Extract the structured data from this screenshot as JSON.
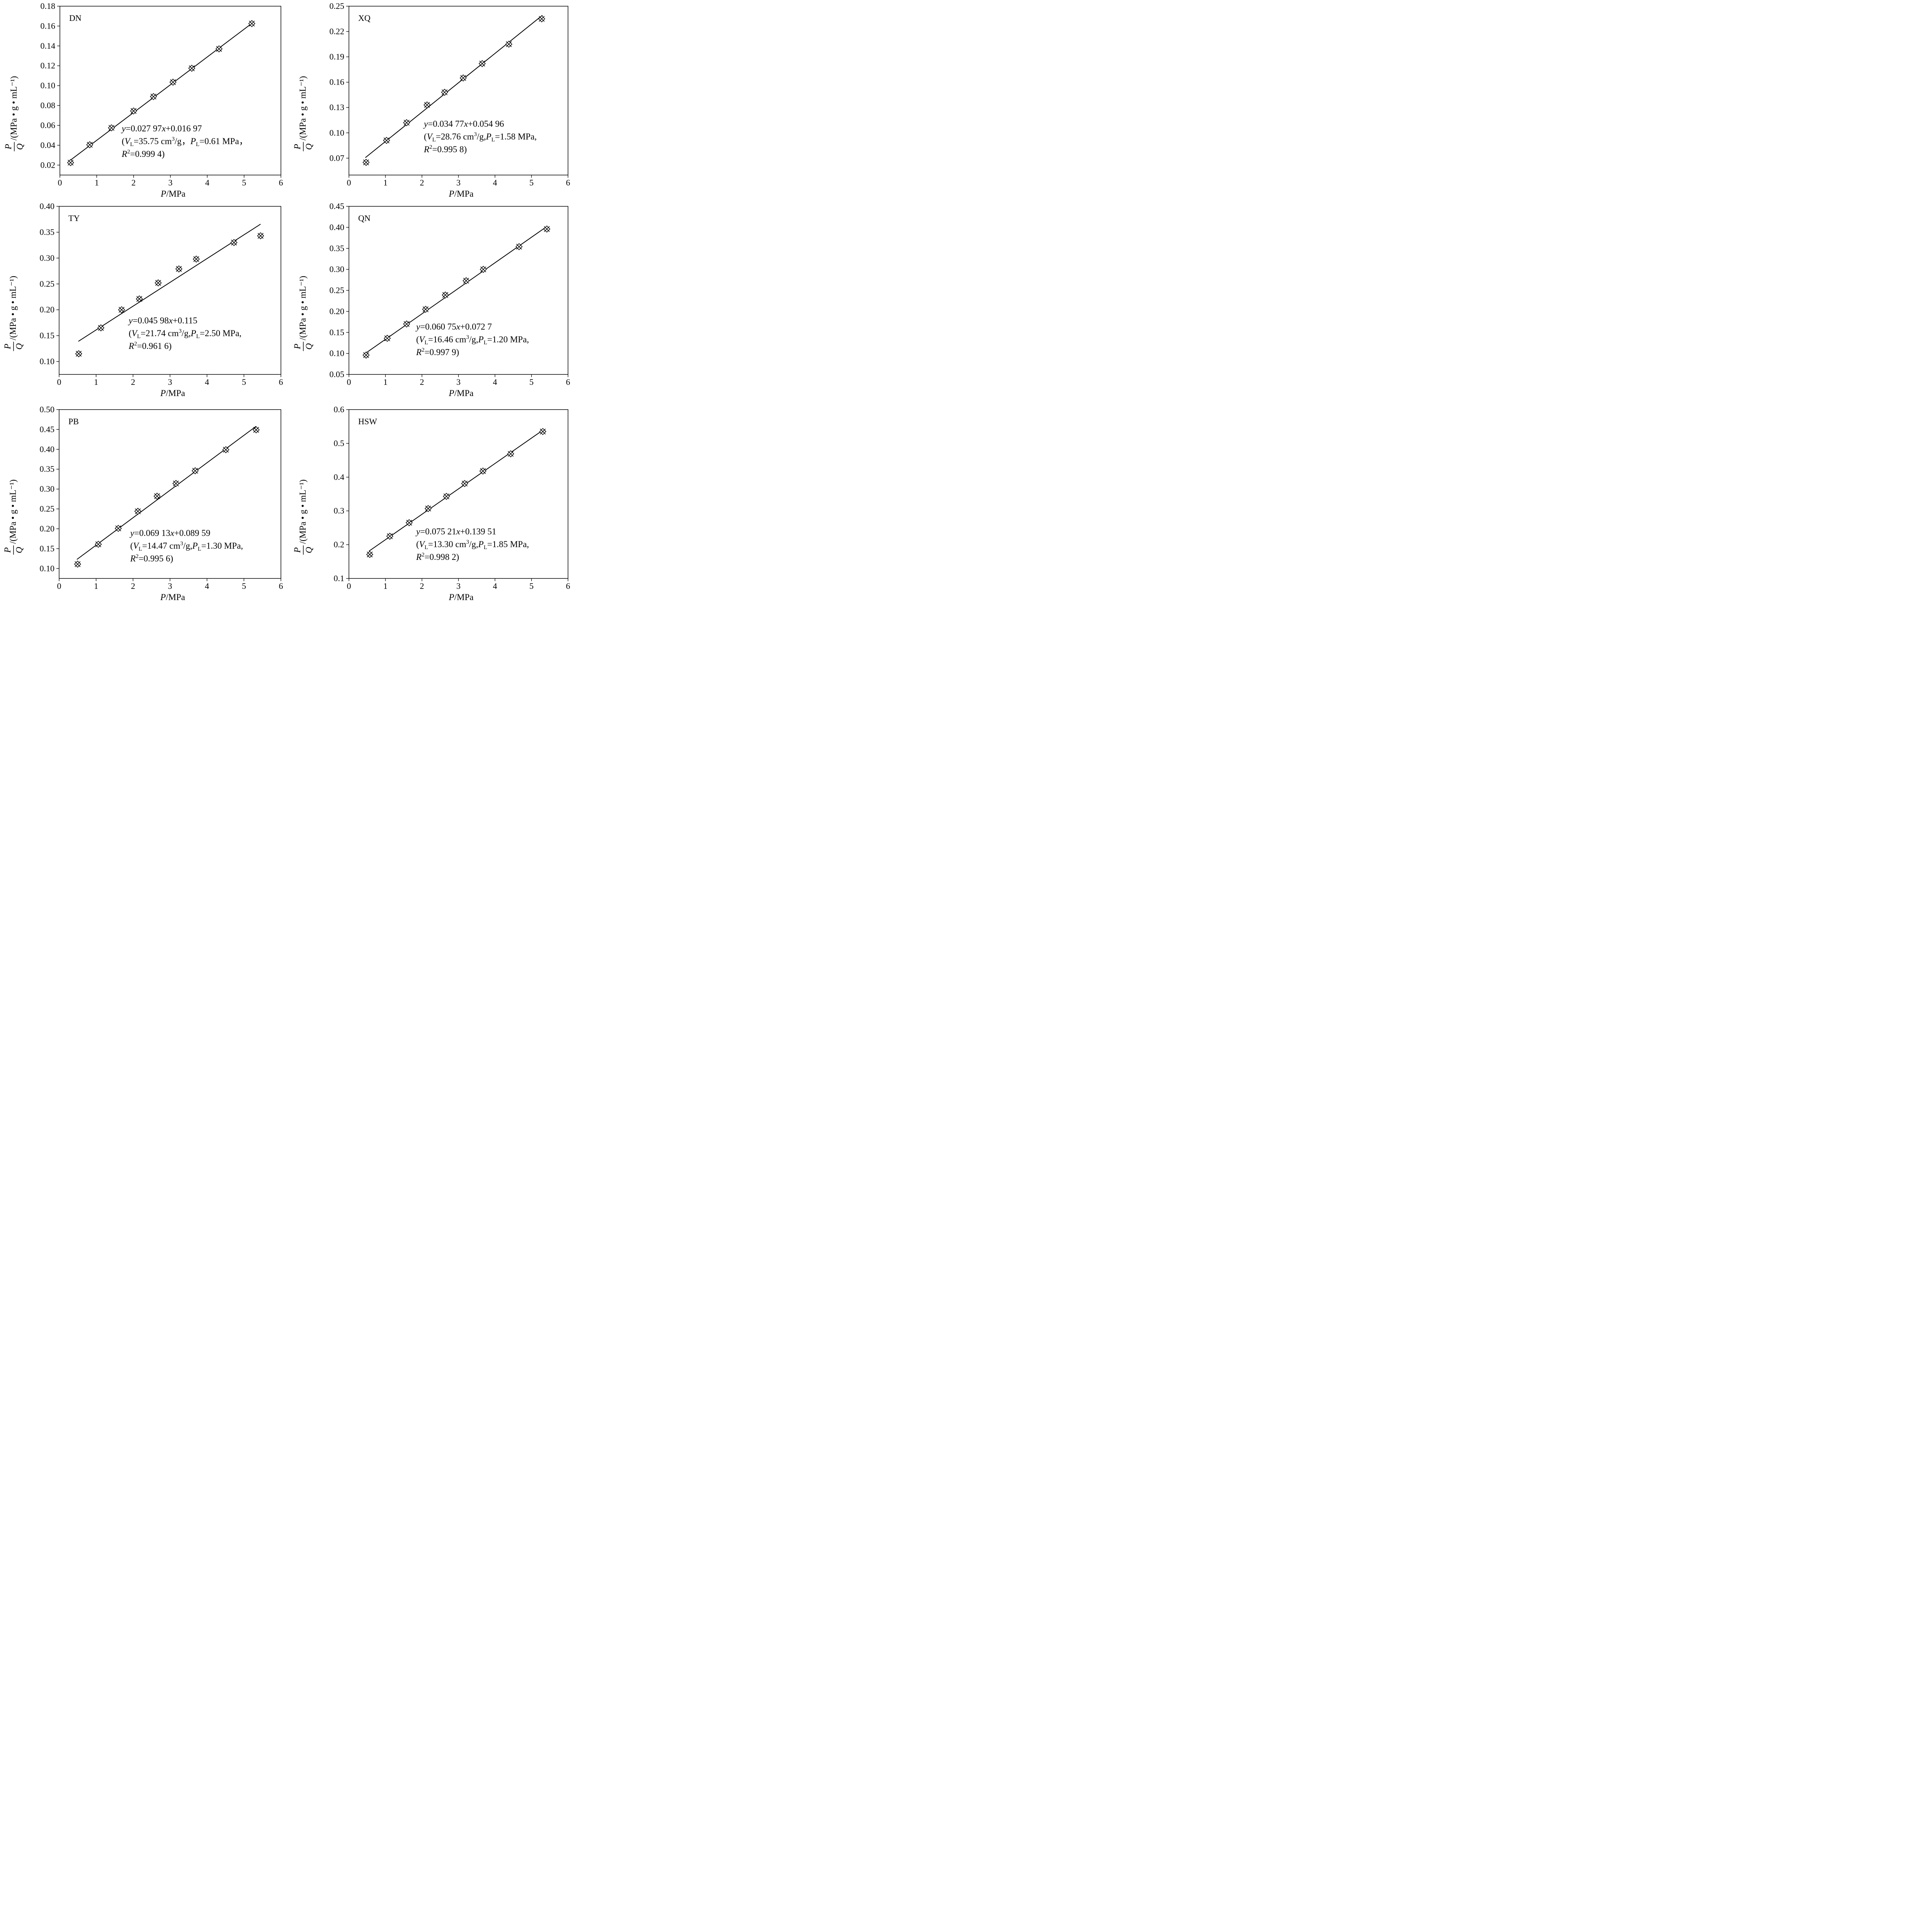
{
  "chart_data": [
    {
      "type": "scatter",
      "panel_label": "DN",
      "xlabel": {
        "var": "P",
        "unit": "/MPa"
      },
      "ylabel": {
        "num": "P",
        "den": "Q",
        "unit": "/(MPa • g • mL⁻¹)"
      },
      "xlim": [
        0,
        6
      ],
      "ylim": [
        0.01,
        0.18
      ],
      "xticks": [
        "0",
        "1",
        "2",
        "3",
        "4",
        "5",
        "6"
      ],
      "yticks": [
        "0.02",
        "0.04",
        "0.06",
        "0.08",
        "0.10",
        "0.12",
        "0.14",
        "0.16",
        "0.18"
      ],
      "points": {
        "x": [
          0.29,
          0.81,
          1.4,
          2.0,
          2.54,
          3.07,
          3.58,
          4.32,
          5.21
        ],
        "y": [
          0.0225,
          0.0405,
          0.0575,
          0.0745,
          0.089,
          0.1035,
          0.1175,
          0.137,
          0.1625
        ]
      },
      "fit": {
        "slope": 0.02797,
        "intercept": 0.01697,
        "x_range": [
          0.25,
          5.25
        ]
      },
      "equation": {
        "line1": "y=0.027 97x+0.016 97",
        "line2": "(VL=35.75 cm3/g，PL=0.61 MPa，",
        "line3": "R2=0.999 4)"
      },
      "grid": false,
      "legend": "none"
    },
    {
      "type": "scatter",
      "panel_label": "XQ",
      "xlabel": {
        "var": "P",
        "unit": "/MPa"
      },
      "ylabel": {
        "num": "P",
        "den": "Q",
        "unit": "/(MPa • g • mL⁻¹)"
      },
      "xlim": [
        0,
        6
      ],
      "ylim": [
        0.05,
        0.25
      ],
      "xticks": [
        "0",
        "1",
        "2",
        "3",
        "4",
        "5",
        "6"
      ],
      "yticks": [
        "0.07",
        "0.10",
        "0.13",
        "0.16",
        "0.19",
        "0.22",
        "0.25"
      ],
      "points": {
        "x": [
          0.47,
          1.03,
          1.58,
          2.14,
          2.62,
          3.13,
          3.65,
          4.38,
          5.28
        ],
        "y": [
          0.065,
          0.091,
          0.112,
          0.133,
          0.148,
          0.165,
          0.182,
          0.205,
          0.235
        ]
      },
      "fit": {
        "slope": 0.03477,
        "intercept": 0.05496,
        "x_range": [
          0.45,
          5.3
        ]
      },
      "equation": {
        "line1": "y=0.034 77x+0.054 96",
        "line2": "(VL=28.76 cm3/g,PL=1.58 MPa,",
        "line3": "R2=0.995 8)"
      },
      "grid": false,
      "legend": "none"
    },
    {
      "type": "scatter",
      "panel_label": "TY",
      "xlabel": {
        "var": "P",
        "unit": "/MPa"
      },
      "ylabel": {
        "num": "P",
        "den": "Q",
        "unit": "/(MPa • g • mL⁻¹)"
      },
      "xlim": [
        0,
        6
      ],
      "ylim": [
        0.075,
        0.4
      ],
      "xticks": [
        "0",
        "1",
        "2",
        "3",
        "4",
        "5",
        "6"
      ],
      "yticks": [
        "0.10",
        "0.15",
        "0.20",
        "0.25",
        "0.30",
        "0.35",
        "0.40"
      ],
      "points": {
        "x": [
          0.53,
          1.13,
          1.69,
          2.17,
          2.68,
          3.24,
          3.71,
          4.73,
          5.45
        ],
        "y": [
          0.115,
          0.165,
          0.2,
          0.221,
          0.252,
          0.279,
          0.298,
          0.33,
          0.343
        ]
      },
      "fit": {
        "slope": 0.04598,
        "intercept": 0.115,
        "x_range": [
          0.52,
          5.45
        ]
      },
      "equation": {
        "line1": "y=0.045 98x+0.115",
        "line2": "(VL=21.74 cm3/g,PL=2.50 MPa,",
        "line3": "R2=0.961 6)"
      },
      "grid": false,
      "legend": "none"
    },
    {
      "type": "scatter",
      "panel_label": "QN",
      "xlabel": {
        "var": "P",
        "unit": "/MPa"
      },
      "ylabel": {
        "num": "P",
        "den": "Q",
        "unit": "/(MPa • g • mL⁻¹)"
      },
      "xlim": [
        0,
        6
      ],
      "ylim": [
        0.05,
        0.45
      ],
      "xticks": [
        "0",
        "1",
        "2",
        "3",
        "4",
        "5",
        "6"
      ],
      "yticks": [
        "0.05",
        "0.10",
        "0.15",
        "0.20",
        "0.25",
        "0.30",
        "0.35",
        "0.40",
        "0.45"
      ],
      "points": {
        "x": [
          0.47,
          1.05,
          1.58,
          2.1,
          2.64,
          3.21,
          3.68,
          4.66,
          5.42
        ],
        "y": [
          0.096,
          0.136,
          0.17,
          0.205,
          0.239,
          0.273,
          0.3,
          0.354,
          0.396
        ]
      },
      "fit": {
        "slope": 0.06075,
        "intercept": 0.0727,
        "x_range": [
          0.42,
          5.42
        ]
      },
      "equation": {
        "line1": "y=0.060 75x+0.072 7",
        "line2": "(VL=16.46 cm3/g,PL=1.20 MPa,",
        "line3": "R2=0.997 9)"
      },
      "grid": false,
      "legend": "none"
    },
    {
      "type": "scatter",
      "panel_label": "PB",
      "xlabel": {
        "var": "P",
        "unit": "/MPa"
      },
      "ylabel": {
        "num": "P",
        "den": "Q",
        "unit": "/(MPa • g • mL⁻¹)"
      },
      "xlim": [
        0,
        6
      ],
      "ylim": [
        0.075,
        0.5
      ],
      "xticks": [
        "0",
        "1",
        "2",
        "3",
        "4",
        "5",
        "6"
      ],
      "yticks": [
        "0.10",
        "0.15",
        "0.20",
        "0.25",
        "0.30",
        "0.35",
        "0.40",
        "0.45",
        "0.50"
      ],
      "points": {
        "x": [
          0.5,
          1.06,
          1.6,
          2.13,
          2.65,
          3.16,
          3.68,
          4.51,
          5.33
        ],
        "y": [
          0.111,
          0.161,
          0.201,
          0.244,
          0.282,
          0.314,
          0.346,
          0.399,
          0.449
        ]
      },
      "fit": {
        "slope": 0.06913,
        "intercept": 0.08959,
        "x_range": [
          0.48,
          5.33
        ]
      },
      "equation": {
        "line1": "y=0.069 13x+0.089 59",
        "line2": "(VL=14.47 cm3/g,PL=1.30 MPa,",
        "line3": "R2=0.995 6)"
      },
      "grid": false,
      "legend": "none"
    },
    {
      "type": "scatter",
      "panel_label": "HSW",
      "xlabel": {
        "var": "P",
        "unit": "/MPa"
      },
      "ylabel": {
        "num": "P",
        "den": "Q",
        "unit": "/(MPa • g • mL⁻¹)"
      },
      "xlim": [
        0,
        6
      ],
      "ylim": [
        0.1,
        0.6
      ],
      "xticks": [
        "0",
        "1",
        "2",
        "3",
        "4",
        "5",
        "6"
      ],
      "yticks": [
        "0.1",
        "0.2",
        "0.3",
        "0.4",
        "0.5",
        "0.6"
      ],
      "points": {
        "x": [
          0.57,
          1.12,
          1.65,
          2.17,
          2.67,
          3.17,
          3.67,
          4.43,
          5.31
        ],
        "y": [
          0.171,
          0.225,
          0.265,
          0.307,
          0.343,
          0.381,
          0.418,
          0.469,
          0.535
        ]
      },
      "fit": {
        "slope": 0.07521,
        "intercept": 0.13951,
        "x_range": [
          0.55,
          5.31
        ]
      },
      "equation": {
        "line1": "y=0.075 21x+0.139 51",
        "line2": "(VL=13.30 cm3/g,PL=1.85 MPa,",
        "line3": "R2=0.998 2)"
      },
      "grid": false,
      "legend": "none"
    }
  ]
}
